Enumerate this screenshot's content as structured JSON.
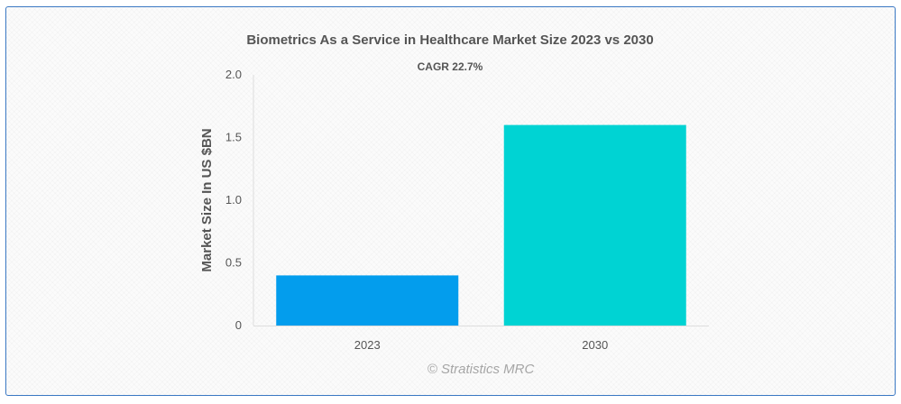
{
  "chart_data": {
    "type": "bar",
    "title": "Biometrics As a Service in Healthcare Market Size 2023 vs 2030",
    "subtitle": "CAGR 22.7%",
    "xlabel": "",
    "ylabel": "Market Size In US $BN",
    "categories": [
      "2023",
      "2030"
    ],
    "values": [
      0.4,
      1.6
    ],
    "colors": [
      "#039ded",
      "#00d3d3"
    ],
    "ylim": [
      0,
      2.0
    ],
    "yticks": [
      0,
      0.5,
      1.0,
      1.5,
      2.0
    ],
    "ytick_labels": [
      "0",
      "0.5",
      "1.0",
      "1.5",
      "2.0"
    ],
    "grid": false,
    "legend": "none",
    "credit": "© Stratistics MRC"
  }
}
